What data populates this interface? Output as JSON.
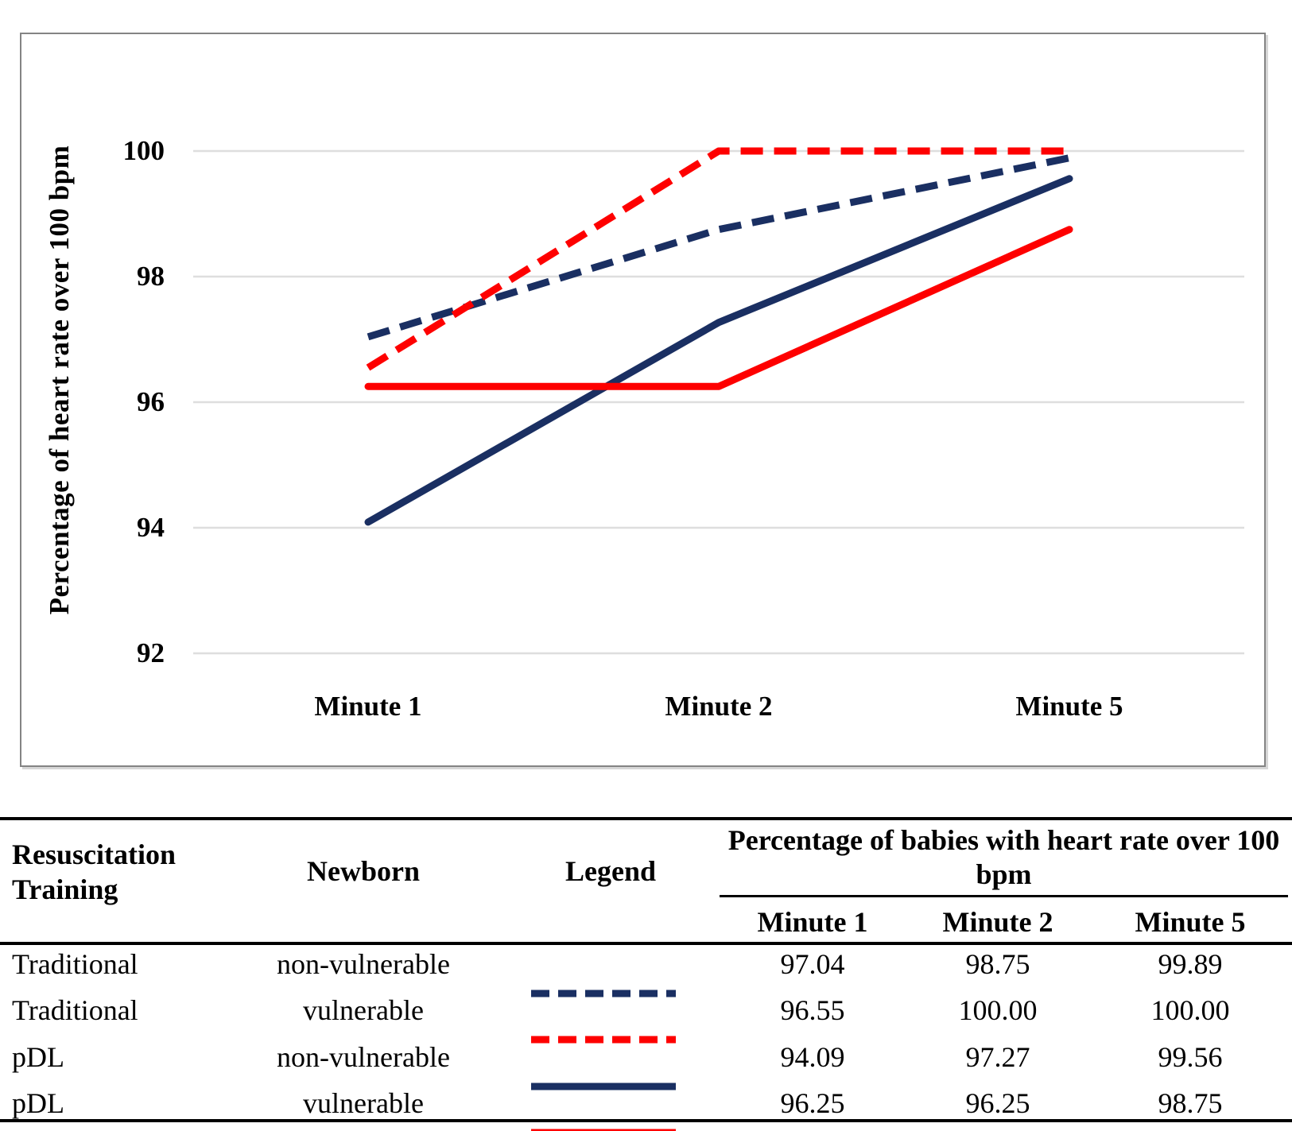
{
  "chart_data": {
    "type": "line",
    "title": "",
    "xlabel": "",
    "ylabel": "Percentage of heart rate over 100 bpm",
    "categories": [
      "Minute 1",
      "Minute 2",
      "Minute 5"
    ],
    "series": [
      {
        "name": "Traditional non-vulnerable",
        "values": [
          97.04,
          98.75,
          99.89
        ],
        "color": "#1A2F62",
        "style": "dashed"
      },
      {
        "name": "Traditional vulnerable",
        "values": [
          96.55,
          100.0,
          100.0
        ],
        "color": "#FE0000",
        "style": "dashed"
      },
      {
        "name": "pDL non-vulnerable",
        "values": [
          94.09,
          97.27,
          99.56
        ],
        "color": "#1A2F62",
        "style": "solid"
      },
      {
        "name": "pDL vulnerable",
        "values": [
          96.25,
          96.25,
          98.75
        ],
        "color": "#FE0000",
        "style": "solid"
      }
    ],
    "ylim": [
      92,
      100
    ],
    "yticks": [
      100,
      98,
      96,
      94,
      92
    ],
    "grid": "horizontal",
    "legend_position": "table-below-chart",
    "colors": {
      "navy": "#1A2F62",
      "red": "#FE0000",
      "gridline": "#DEDEDE",
      "frame": "#848484"
    }
  },
  "table": {
    "col_headers": [
      "Resuscitation Training",
      "Newborn",
      "Legend"
    ],
    "group_header": "Percentage of babies with heart rate over 100 bpm",
    "minute_headers": [
      "Minute 1",
      "Minute 2",
      "Minute 5"
    ],
    "rows": [
      {
        "training": "Traditional",
        "newborn": "non-vulnerable",
        "legend": "navy-dashed-line",
        "values": [
          "97.04",
          "98.75",
          "99.89"
        ]
      },
      {
        "training": "Traditional",
        "newborn": "vulnerable",
        "legend": "red-dashed-line",
        "values": [
          "96.55",
          "100.00",
          "100.00"
        ]
      },
      {
        "training": "pDL",
        "newborn": "non-vulnerable",
        "legend": "navy-solid-line",
        "values": [
          "94.09",
          "97.27",
          "99.56"
        ]
      },
      {
        "training": "pDL",
        "newborn": "vulnerable",
        "legend": "red-solid-line",
        "values": [
          "96.25",
          "96.25",
          "98.75"
        ]
      }
    ]
  }
}
